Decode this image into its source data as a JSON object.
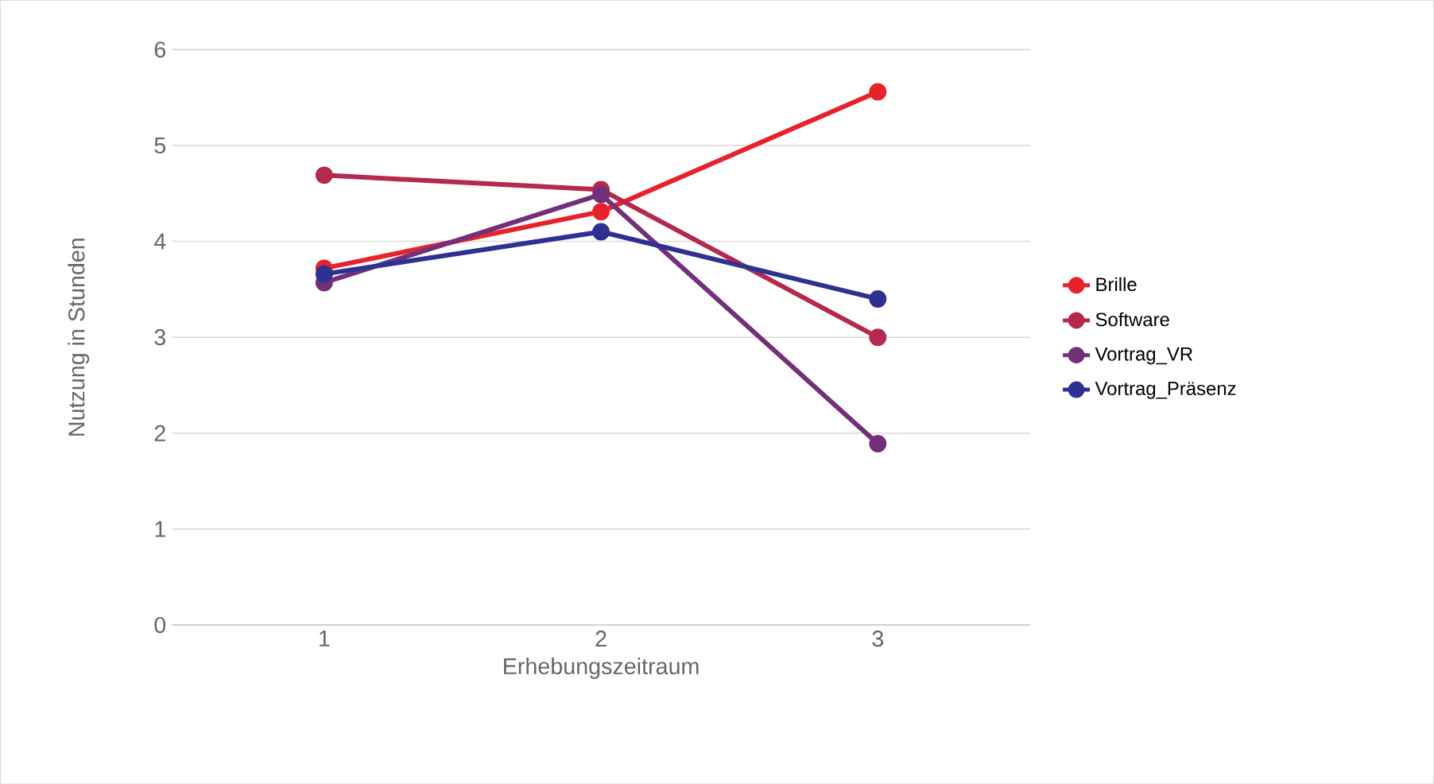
{
  "chart_data": {
    "type": "line",
    "xlabel": "Erhebungszeitraum",
    "ylabel": "Nutzung in Stunden",
    "categories": [
      "1",
      "2",
      "3"
    ],
    "series": [
      {
        "name": "Brille",
        "color": "#e8222b",
        "values": [
          3.72,
          4.31,
          5.56
        ]
      },
      {
        "name": "Software",
        "color": "#b5294f",
        "values": [
          4.69,
          4.54,
          3.0
        ]
      },
      {
        "name": "Vortrag_VR",
        "color": "#72307a",
        "values": [
          3.57,
          4.49,
          1.89
        ]
      },
      {
        "name": "Vortrag_Präsenz",
        "color": "#2e3192",
        "values": [
          3.66,
          4.1,
          3.4
        ]
      }
    ],
    "ylim": [
      0,
      6
    ],
    "yticks": [
      0,
      1,
      2,
      3,
      4,
      5,
      6
    ],
    "grid": "y",
    "legend": "right",
    "marker": "circle",
    "line_style": "solid"
  }
}
